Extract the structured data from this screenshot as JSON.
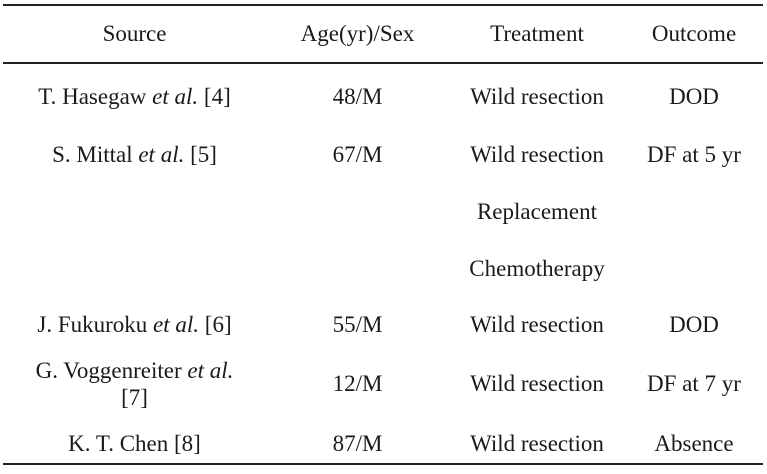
{
  "table": {
    "headers": [
      "Source",
      "Age(yr)/Sex",
      "Treatment",
      "Outcome"
    ],
    "rows": [
      {
        "source": {
          "author": "T. Hasegaw",
          "etal": "et al.",
          "ref": "[4]"
        },
        "age_sex": "48/M",
        "treatment": [
          "Wild resection"
        ],
        "outcome": "DOD"
      },
      {
        "source": {
          "author": "S. Mittal",
          "etal": "et al.",
          "ref": "[5]"
        },
        "age_sex": "67/M",
        "treatment": [
          "Wild resection",
          "Replacement",
          "Chemotherapy"
        ],
        "outcome": "DF at 5 yr"
      },
      {
        "source": {
          "author": "J. Fukuroku",
          "etal": "et al.",
          "ref": "[6]"
        },
        "age_sex": "55/M",
        "treatment": [
          "Wild resection"
        ],
        "outcome": "DOD"
      },
      {
        "source": {
          "author": "G. Voggenreiter",
          "etal": "et al.",
          "ref": "[7]"
        },
        "age_sex": "12/M",
        "treatment": [
          "Wild resection"
        ],
        "outcome": "DF at 7 yr"
      },
      {
        "source": {
          "author": "K. T. Chen",
          "etal": "",
          "ref": "[8]"
        },
        "age_sex": "87/M",
        "treatment": [
          "Wild resection"
        ],
        "outcome": "Absence"
      }
    ]
  }
}
